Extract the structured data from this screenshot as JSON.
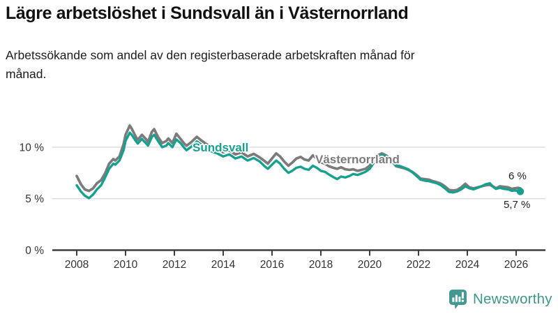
{
  "header": {
    "title": "Lägre arbetslöshet i Sundsvall än i Västernorrland",
    "subtitle": "Arbetssökande som andel av den registerbaserade arbetskraften månad för månad."
  },
  "branding": {
    "wordmark": "Newsworthy",
    "color": "#3F968D",
    "icon": "bar-chart-speech-bubble"
  },
  "chart_data": {
    "type": "line",
    "unit": "%",
    "grid": "horizontal",
    "legend": "inline-labels-on-lines",
    "xlim": [
      2007.7,
      2026.6
    ],
    "ylim": [
      0,
      12.5
    ],
    "x_ticks": [
      2008,
      2010,
      2012,
      2014,
      2016,
      2018,
      2020,
      2022,
      2024,
      2026
    ],
    "y_ticks": [
      {
        "value": 0,
        "label": "0 %"
      },
      {
        "value": 5,
        "label": "5 %"
      },
      {
        "value": 10,
        "label": "10 %"
      }
    ],
    "x": [
      2008.0,
      2008.17,
      2008.33,
      2008.5,
      2008.67,
      2008.83,
      2009.0,
      2009.17,
      2009.33,
      2009.5,
      2009.58,
      2009.75,
      2009.92,
      2010.0,
      2010.17,
      2010.25,
      2010.42,
      2010.5,
      2010.67,
      2010.83,
      2010.92,
      2011.08,
      2011.17,
      2011.33,
      2011.5,
      2011.67,
      2011.75,
      2011.92,
      2012.08,
      2012.25,
      2012.42,
      2012.5,
      2012.67,
      2012.92,
      2013.08,
      2013.25,
      2013.5,
      2013.75,
      2014.0,
      2014.25,
      2014.5,
      2014.75,
      2015.0,
      2015.25,
      2015.5,
      2015.67,
      2015.83,
      2016.0,
      2016.17,
      2016.33,
      2016.5,
      2016.67,
      2016.83,
      2017.0,
      2017.17,
      2017.33,
      2017.5,
      2017.67,
      2017.83,
      2018.0,
      2018.17,
      2018.33,
      2018.5,
      2018.67,
      2018.83,
      2019.0,
      2019.17,
      2019.33,
      2019.5,
      2019.67,
      2019.83,
      2020.0,
      2020.17,
      2020.33,
      2020.5,
      2020.67,
      2020.83,
      2021.0,
      2021.08,
      2021.25,
      2021.42,
      2021.58,
      2021.75,
      2021.92,
      2022.08,
      2022.25,
      2022.42,
      2022.58,
      2022.75,
      2022.92,
      2023.08,
      2023.25,
      2023.42,
      2023.58,
      2023.75,
      2023.92,
      2024.08,
      2024.25,
      2024.42,
      2024.58,
      2024.75,
      2024.92,
      2025.08,
      2025.17,
      2025.33,
      2025.5,
      2025.67,
      2025.83,
      2025.92,
      2026.08,
      2026.17
    ],
    "series": [
      {
        "name": "Sundsvall",
        "color": "#16A18F",
        "end_label": "5,7 %",
        "end_dot": true,
        "values": [
          6.3,
          5.7,
          5.3,
          5.05,
          5.4,
          5.9,
          6.3,
          7.1,
          7.9,
          8.4,
          8.3,
          8.7,
          9.7,
          10.6,
          11.4,
          11.2,
          10.6,
          10.35,
          10.8,
          10.4,
          10.15,
          11.0,
          11.2,
          10.6,
          10.0,
          10.15,
          10.4,
          10.0,
          10.75,
          10.4,
          9.9,
          9.7,
          10.0,
          10.55,
          10.3,
          10.0,
          9.6,
          9.4,
          9.1,
          9.3,
          8.9,
          9.1,
          8.7,
          8.95,
          8.6,
          8.2,
          7.9,
          8.3,
          8.7,
          8.4,
          7.9,
          7.5,
          7.7,
          8.0,
          8.1,
          7.9,
          7.8,
          8.2,
          8.0,
          7.7,
          7.6,
          7.35,
          7.1,
          6.9,
          7.15,
          7.05,
          7.2,
          7.4,
          7.3,
          7.45,
          7.6,
          7.9,
          8.5,
          9.0,
          9.25,
          9.1,
          8.8,
          8.4,
          8.25,
          8.15,
          8.0,
          7.85,
          7.55,
          7.2,
          6.85,
          6.75,
          6.7,
          6.6,
          6.5,
          6.3,
          6.0,
          5.65,
          5.6,
          5.7,
          5.9,
          6.2,
          6.0,
          5.9,
          6.05,
          6.2,
          6.4,
          6.5,
          6.1,
          5.95,
          6.05,
          5.95,
          5.9,
          5.75,
          5.8,
          5.75,
          5.7
        ]
      },
      {
        "name": "Västernorrland",
        "color": "#7B7B7B",
        "end_label": "6 %",
        "end_dot": false,
        "values": [
          7.2,
          6.4,
          5.9,
          5.75,
          6.0,
          6.5,
          6.8,
          7.5,
          8.4,
          8.85,
          8.7,
          9.1,
          10.3,
          11.2,
          12.1,
          11.8,
          11.0,
          10.7,
          11.2,
          10.8,
          10.5,
          11.5,
          11.75,
          11.0,
          10.4,
          10.6,
          10.85,
          10.4,
          11.3,
          10.8,
          10.3,
          10.15,
          10.45,
          11.0,
          10.7,
          10.4,
          10.0,
          9.8,
          9.5,
          9.7,
          9.3,
          9.5,
          9.1,
          9.35,
          9.0,
          8.7,
          8.4,
          8.9,
          9.4,
          9.1,
          8.6,
          8.2,
          8.5,
          8.9,
          9.05,
          8.8,
          8.7,
          9.2,
          8.9,
          8.5,
          8.4,
          8.15,
          8.0,
          7.9,
          8.05,
          7.85,
          7.8,
          7.85,
          7.7,
          7.8,
          7.9,
          8.2,
          8.8,
          9.2,
          9.4,
          9.2,
          8.9,
          8.4,
          8.15,
          8.05,
          7.95,
          7.8,
          7.6,
          7.3,
          6.95,
          6.9,
          6.85,
          6.7,
          6.6,
          6.45,
          6.2,
          5.85,
          5.8,
          5.85,
          6.1,
          6.45,
          6.1,
          6.0,
          6.1,
          6.2,
          6.3,
          6.35,
          6.15,
          6.0,
          6.2,
          6.15,
          6.1,
          5.95,
          6.0,
          6.05,
          6.0
        ]
      }
    ]
  }
}
